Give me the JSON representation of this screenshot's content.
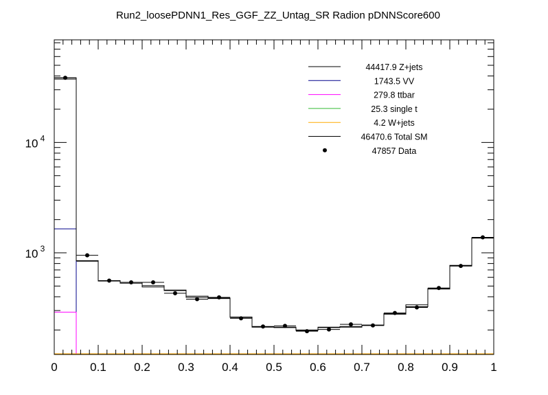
{
  "chart_data": {
    "type": "histogram",
    "title": "Run2_loosePDNN1_Res_GGF_ZZ_Untag_SR Radion  pDNNScore600",
    "xlabel": "",
    "ylabel": "",
    "xlim": [
      0,
      1
    ],
    "ylim": [
      120,
      85000
    ],
    "yscale": "log",
    "grid": false,
    "legend_position": "top-right",
    "bin_edges": [
      0,
      0.05,
      0.1,
      0.15,
      0.2,
      0.25,
      0.3,
      0.35,
      0.4,
      0.45,
      0.5,
      0.55,
      0.6,
      0.65,
      0.7,
      0.75,
      0.8,
      0.85,
      0.9,
      0.95,
      1.0
    ],
    "x_ticks": [
      {
        "value": 0,
        "label": "0"
      },
      {
        "value": 0.1,
        "label": "0.1"
      },
      {
        "value": 0.2,
        "label": "0.2"
      },
      {
        "value": 0.3,
        "label": "0.3"
      },
      {
        "value": 0.4,
        "label": "0.4"
      },
      {
        "value": 0.5,
        "label": "0.5"
      },
      {
        "value": 0.6,
        "label": "0.6"
      },
      {
        "value": 0.7,
        "label": "0.7"
      },
      {
        "value": 0.8,
        "label": "0.8"
      },
      {
        "value": 0.9,
        "label": "0.9"
      },
      {
        "value": 1,
        "label": "1"
      }
    ],
    "y_ticks": [
      {
        "value": 1000,
        "base": "10",
        "exp": "3"
      },
      {
        "value": 10000,
        "base": "10",
        "exp": "4"
      }
    ],
    "series": [
      {
        "name": "Z+jets",
        "total": "44417.9",
        "color": "#000000",
        "kind": "hist",
        "values": [
          37500,
          840,
          555,
          530,
          490,
          455,
          395,
          385,
          260,
          212,
          210,
          198,
          210,
          212,
          220,
          278,
          325,
          470,
          760,
          1360
        ]
      },
      {
        "name": "VV",
        "total": "1743.5",
        "color": "#00008b",
        "kind": "hist",
        "values": [
          1650,
          0,
          0,
          0,
          0,
          0,
          0,
          0,
          0,
          0,
          0,
          0,
          0,
          0,
          0,
          0,
          0,
          0,
          0,
          0
        ]
      },
      {
        "name": "ttbar",
        "total": "279.8",
        "color": "#ff00ff",
        "kind": "hist",
        "values": [
          290,
          0,
          0,
          0,
          0,
          0,
          0,
          0,
          0,
          0,
          0,
          0,
          0,
          0,
          0,
          0,
          0,
          0,
          0,
          0
        ]
      },
      {
        "name": "single t",
        "total": "25.3",
        "color": "#33bb33",
        "kind": "hist",
        "values": [
          0,
          0,
          0,
          0,
          0,
          0,
          0,
          0,
          0,
          0,
          0,
          0,
          0,
          0,
          0,
          0,
          0,
          0,
          0,
          0
        ]
      },
      {
        "name": "W+jets",
        "total": "4.2",
        "color": "#ffaa00",
        "kind": "hist",
        "values": [
          0,
          0,
          0,
          0,
          0,
          0,
          0,
          0,
          0,
          0,
          0,
          0,
          0,
          0,
          0,
          0,
          0,
          0,
          0,
          0
        ]
      },
      {
        "name": "Total SM",
        "total": "46470.6",
        "color": "#000000",
        "kind": "hist",
        "values": [
          38500,
          850,
          560,
          540,
          505,
          460,
          405,
          390,
          262,
          214,
          212,
          200,
          212,
          215,
          222,
          282,
          338,
          475,
          770,
          1370
        ]
      },
      {
        "name": "Data",
        "total": "47857",
        "color": "#000000",
        "kind": "points",
        "values": [
          38500,
          950,
          560,
          540,
          540,
          430,
          380,
          395,
          255,
          215,
          218,
          195,
          202,
          225,
          220,
          285,
          320,
          480,
          760,
          1380
        ]
      }
    ]
  }
}
